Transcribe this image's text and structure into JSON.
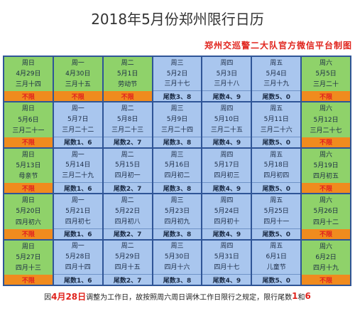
{
  "title": "2018年5月份郑州限行日历",
  "source": "郑州交巡警二大队官方微信平台制图",
  "colors": {
    "weekend_bg": "#8fd26a",
    "weekday_bg": "#a9c6ee",
    "free_bg": "#f08b1e",
    "red": "#e0241d",
    "grid_line": "#2f5597"
  },
  "calendar": {
    "weeks": [
      [
        {
          "day": "周日",
          "date": "4月29日",
          "lunar": "三月十四",
          "restrict": "不限",
          "type": "weekend"
        },
        {
          "day": "周一",
          "date": "4月30日",
          "lunar": "三月十五",
          "restrict": "不限",
          "type": "weekend"
        },
        {
          "day": "周二",
          "date": "5月1日",
          "lunar": "劳动节",
          "restrict": "不限",
          "type": "weekend"
        },
        {
          "day": "周三",
          "date": "5月2日",
          "lunar": "三月十七",
          "restrict": "尾数3、8",
          "type": "weekday"
        },
        {
          "day": "周四",
          "date": "5月3日",
          "lunar": "三月十八",
          "restrict": "尾数4、9",
          "type": "weekday"
        },
        {
          "day": "周五",
          "date": "5月4日",
          "lunar": "三月十九",
          "restrict": "尾数5、0",
          "type": "weekday"
        },
        {
          "day": "周六",
          "date": "5月5日",
          "lunar": "三月二十",
          "restrict": "不限",
          "type": "weekend"
        }
      ],
      [
        {
          "day": "周日",
          "date": "5月6日",
          "lunar": "三月二十一",
          "restrict": "不限",
          "type": "weekend"
        },
        {
          "day": "周一",
          "date": "5月7日",
          "lunar": "三月二十二",
          "restrict": "尾数1、6",
          "type": "weekday"
        },
        {
          "day": "周二",
          "date": "5月8日",
          "lunar": "三月二十三",
          "restrict": "尾数2、7",
          "type": "weekday"
        },
        {
          "day": "周三",
          "date": "5月9日",
          "lunar": "三月二十四",
          "restrict": "尾数3、8",
          "type": "weekday"
        },
        {
          "day": "周四",
          "date": "5月10日",
          "lunar": "三月二十五",
          "restrict": "尾数4、9",
          "type": "weekday"
        },
        {
          "day": "周五",
          "date": "5月11日",
          "lunar": "三月二十六",
          "restrict": "尾数5、0",
          "type": "weekday"
        },
        {
          "day": "周六",
          "date": "5月12日",
          "lunar": "三月二十七",
          "restrict": "不限",
          "type": "weekend"
        }
      ],
      [
        {
          "day": "周日",
          "date": "5月13日",
          "lunar": "母亲节",
          "restrict": "不限",
          "type": "weekend"
        },
        {
          "day": "周一",
          "date": "5月14日",
          "lunar": "三月二十九",
          "restrict": "尾数1、6",
          "type": "weekday"
        },
        {
          "day": "周二",
          "date": "5月15日",
          "lunar": "四月初一",
          "restrict": "尾数2、7",
          "type": "weekday"
        },
        {
          "day": "周三",
          "date": "5月16日",
          "lunar": "四月初二",
          "restrict": "尾数3、8",
          "type": "weekday"
        },
        {
          "day": "周四",
          "date": "5月17日",
          "lunar": "四月初三",
          "restrict": "尾数4、9",
          "type": "weekday"
        },
        {
          "day": "周五",
          "date": "5月18日",
          "lunar": "四月初四",
          "restrict": "尾数5、0",
          "type": "weekday"
        },
        {
          "day": "周六",
          "date": "5月19日",
          "lunar": "四月初五",
          "restrict": "不限",
          "type": "weekend"
        }
      ],
      [
        {
          "day": "周日",
          "date": "5月20日",
          "lunar": "四月初六",
          "restrict": "不限",
          "type": "weekend"
        },
        {
          "day": "周一",
          "date": "5月21日",
          "lunar": "四月初七",
          "restrict": "尾数1、6",
          "type": "weekday"
        },
        {
          "day": "周二",
          "date": "5月22日",
          "lunar": "四月初八",
          "restrict": "尾数2、7",
          "type": "weekday"
        },
        {
          "day": "周三",
          "date": "5月23日",
          "lunar": "四月初九",
          "restrict": "尾数3、8",
          "type": "weekday"
        },
        {
          "day": "周四",
          "date": "5月24日",
          "lunar": "四月初十",
          "restrict": "尾数4、9",
          "type": "weekday"
        },
        {
          "day": "周五",
          "date": "5月25日",
          "lunar": "四月十一",
          "restrict": "尾数5、0",
          "type": "weekday"
        },
        {
          "day": "周六",
          "date": "5月26日",
          "lunar": "四月十二",
          "restrict": "不限",
          "type": "weekend"
        }
      ],
      [
        {
          "day": "周日",
          "date": "5月27日",
          "lunar": "四月十三",
          "restrict": "不限",
          "type": "weekend"
        },
        {
          "day": "周一",
          "date": "5月28日",
          "lunar": "四月十四",
          "restrict": "尾数1、6",
          "type": "weekday"
        },
        {
          "day": "周二",
          "date": "5月29日",
          "lunar": "四月十五",
          "restrict": "尾数2、7",
          "type": "weekday"
        },
        {
          "day": "周三",
          "date": "5月30日",
          "lunar": "四月十六",
          "restrict": "尾数3、8",
          "type": "weekday"
        },
        {
          "day": "周四",
          "date": "5月31日",
          "lunar": "四月十七",
          "restrict": "尾数4、9",
          "type": "weekday"
        },
        {
          "day": "周五",
          "date": "6月1日",
          "lunar": "儿童节",
          "restrict": "尾数5、0",
          "type": "weekday"
        },
        {
          "day": "周六",
          "date": "6月2日",
          "lunar": "四月十九",
          "restrict": "不限",
          "type": "weekend"
        }
      ]
    ]
  },
  "note": {
    "prefix": "因",
    "highlight_date": "4月28日",
    "middle": "调整为工作日，故按照周六周日调休工作日限行之规定，限行尾数",
    "digit_a": "1",
    "and": "和",
    "digit_b": "6"
  }
}
